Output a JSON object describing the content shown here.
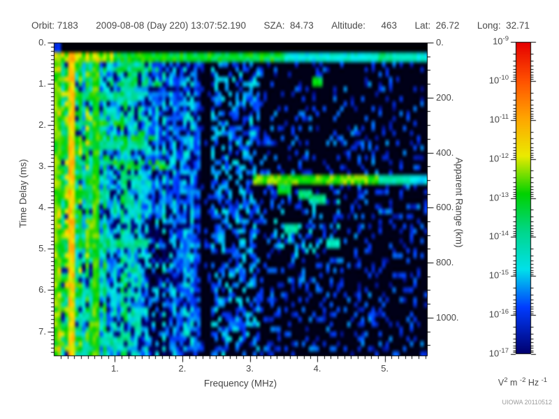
{
  "header": {
    "items": [
      "Orbit: 7183",
      "2009-08-08 (Day 220) 13:07:52.190",
      "SZA:  84.73",
      "Altitude:      463",
      "Lat:  26.72",
      "Long:  32.71"
    ]
  },
  "watermark": "UIOWA 20110512",
  "chart_data": {
    "type": "heatmap",
    "x_axis": {
      "label": "Frequency (MHz)",
      "min": 0.1,
      "max": 5.63,
      "major_ticks": [
        1,
        2,
        3,
        4,
        5
      ],
      "major_tick_labels": [
        "1.",
        "2.",
        "3.",
        "4.",
        "5."
      ],
      "minor_step": 0.1
    },
    "y_axis": {
      "label": "Time Delay (ms)",
      "min": 0,
      "max": 7.6,
      "major_ticks": [
        0,
        1,
        2,
        3,
        4,
        5,
        6,
        7
      ],
      "major_tick_labels": [
        "0.",
        "1.",
        "2.",
        "3.",
        "4.",
        "5.",
        "6.",
        "7."
      ],
      "minor_step": 0.1,
      "direction": "down"
    },
    "y2_axis": {
      "label": "Apparent Range (km)",
      "km_per_ms": 150,
      "major_ticks": [
        0,
        200,
        400,
        600,
        800,
        1000
      ],
      "major_tick_labels": [
        "0.",
        "200.",
        "400.",
        "600.",
        "800.",
        "1000."
      ],
      "minor_step": 50,
      "max_km": 1140
    },
    "colorbar": {
      "scale": "log",
      "base": "10",
      "decade_exponents": [
        "-9",
        "-10",
        "-11",
        "-12",
        "-13",
        "-14",
        "-15",
        "-16",
        "-17"
      ],
      "unit_parts": [
        [
          "V",
          "2"
        ],
        [
          " m ",
          "-2"
        ],
        [
          " Hz ",
          "-1"
        ]
      ]
    },
    "palette": [
      [
        0.0,
        0,
        0,
        0
      ],
      [
        0.055,
        0,
        0,
        110
      ],
      [
        0.195,
        0,
        60,
        255
      ],
      [
        0.31,
        0,
        225,
        235
      ],
      [
        0.425,
        0,
        215,
        140
      ],
      [
        0.54,
        0,
        210,
        0
      ],
      [
        0.655,
        235,
        235,
        0
      ],
      [
        0.77,
        255,
        165,
        0
      ],
      [
        0.885,
        255,
        80,
        0
      ],
      [
        1.0,
        230,
        0,
        0
      ]
    ],
    "noise": {
      "seed": 7183,
      "grid_cols": 107,
      "grid_rows": 64
    },
    "features": {
      "top_black_ms": 0.235,
      "transmit_band": {
        "t0": 0.235,
        "t1": 0.5,
        "v_lowf": 0.62,
        "v_mid": 0.5,
        "v_high": 0.34,
        "f_lowmax": 1.0,
        "f_midmax": 3.5
      },
      "bright_columns": [
        {
          "f": 0.35,
          "v": 0.7
        },
        {
          "f": 0.73,
          "v": 0.55
        },
        {
          "f": 0.15,
          "v": 0.56
        }
      ],
      "cyclotron_echoes": {
        "times_ms": [
          1.27,
          2.45,
          3.66,
          4.86,
          6.06,
          7.26
        ],
        "f_max": [
          1.35,
          1.5,
          0.95,
          1.5,
          0.8,
          1.15
        ],
        "half_width_ms": 0.12,
        "v": 0.52
      },
      "echo_traces": [
        {
          "f0": 0.5,
          "f1": 1.12,
          "t0": 1.9,
          "t1": 2.02,
          "wiggle_ms": 0.06,
          "v": 0.5
        },
        {
          "f0": 0.78,
          "f1": 1.62,
          "t0": 2.22,
          "t1": 2.4,
          "wiggle_ms": 0.07,
          "v": 0.5
        },
        {
          "f0": 0.88,
          "f1": 1.78,
          "t0": 2.86,
          "t1": 3.04,
          "wiggle_ms": 0.06,
          "v": 0.5
        }
      ],
      "column_segments": [
        {
          "f": 0.5,
          "t0": 1.42,
          "t1": 1.92,
          "v": 0.48
        }
      ],
      "surface_reflection": {
        "t_ms": 3.33,
        "half_width_ms": 0.055,
        "segments": [
          [
            3.06,
            4.9,
            0.58
          ],
          [
            4.9,
            5.35,
            0.4
          ],
          [
            5.35,
            5.63,
            0.3
          ]
        ]
      },
      "dark_band": {
        "f0": 2.26,
        "f1": 2.45
      },
      "dark_column_lowt": {
        "f0": 1.5,
        "f1": 1.78,
        "t_min": 4.3
      },
      "hot_blobs": [
        {
          "f": 3.52,
          "t": 3.55,
          "v": 0.48
        },
        {
          "f": 3.8,
          "t": 3.68,
          "v": 0.45
        },
        {
          "f": 4.05,
          "t": 3.82,
          "v": 0.42
        },
        {
          "f": 4.0,
          "t": 0.97,
          "v": 0.5
        },
        {
          "f": 5.0,
          "t": 0.38,
          "v": 0.44
        },
        {
          "f": 3.6,
          "t": 4.55,
          "v": 0.4
        },
        {
          "f": 4.25,
          "t": 4.9,
          "v": 0.38
        }
      ],
      "cluster_boxes": [
        {
          "f0": 0.92,
          "f1": 1.68,
          "t0": 0.5,
          "t1": 1.05,
          "p": 0.45,
          "v": 0.46
        },
        {
          "f0": 3.3,
          "f1": 4.35,
          "t0": 3.8,
          "t1": 5.2,
          "p": 0.12,
          "v": 0.3
        }
      ]
    }
  }
}
